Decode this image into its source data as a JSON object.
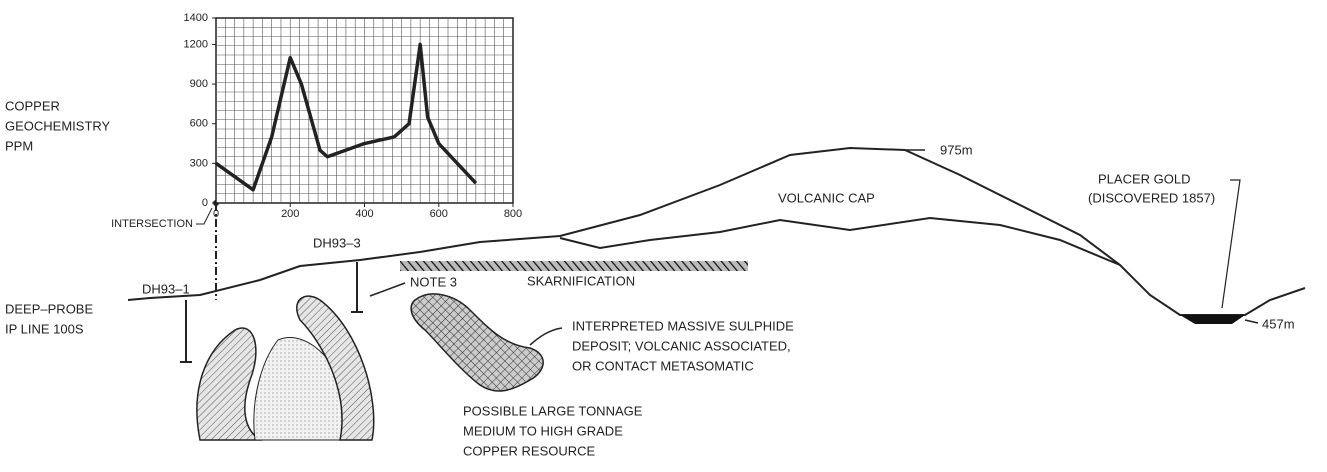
{
  "chart_data": {
    "type": "line",
    "ylabel": [
      "COPPER",
      "GEOCHEMISTRY",
      "PPM"
    ],
    "x": [
      0,
      100,
      150,
      200,
      230,
      280,
      300,
      400,
      480,
      520,
      550,
      570,
      600,
      700
    ],
    "values": [
      300,
      100,
      500,
      1100,
      900,
      400,
      350,
      450,
      500,
      600,
      1200,
      650,
      450,
      150
    ],
    "color": "#222222",
    "xlim": [
      0,
      800
    ],
    "xticks": [
      0,
      200,
      400,
      600,
      800
    ],
    "ylim": [
      0,
      1400
    ],
    "yticks": [
      0,
      300,
      600,
      900,
      1200,
      1400
    ],
    "grid": true
  },
  "labels": {
    "intersection": "INTERSECTION",
    "dh93_1": "DH93–1",
    "dh93_3": "DH93–3",
    "deep_probe": [
      "DEEP–PROBE",
      "IP LINE 100S"
    ],
    "note3": "NOTE 3",
    "skarnification": "SKARNIFICATION",
    "volcanic_cap": "VOLCANIC CAP",
    "summit": "975m",
    "placer_gold": [
      "PLACER GOLD",
      "(DISCOVERED 1857)"
    ],
    "valley": "457m",
    "sulphide": [
      "INTERPRETED MASSIVE SULPHIDE",
      "DEPOSIT; VOLCANIC ASSOCIATED,",
      "OR CONTACT METASOMATIC"
    ],
    "resource": [
      "POSSIBLE LARGE TONNAGE",
      "MEDIUM TO HIGH GRADE",
      "COPPER RESOURCE"
    ]
  }
}
